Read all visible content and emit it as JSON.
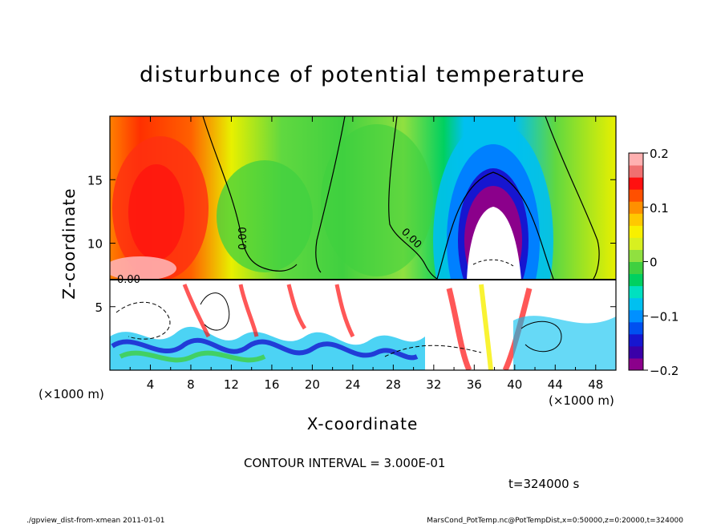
{
  "chart_data": {
    "type": "heatmap",
    "title": "disturbunce of potential temperature",
    "xlabel": "X-coordinate",
    "ylabel": "Z-coordinate",
    "x_unit_left": "(×1000 m)",
    "x_unit_right": "(×1000 m)",
    "xlim": [
      0,
      50
    ],
    "ylim": [
      0,
      20
    ],
    "x_ticks": [
      4,
      8,
      12,
      16,
      20,
      24,
      28,
      32,
      36,
      40,
      44,
      48
    ],
    "y_ticks": [
      5,
      10,
      15
    ],
    "colorbar": {
      "range": [
        -0.2,
        0.2
      ],
      "ticks": [
        0.2,
        0.1,
        0,
        -0.1,
        -0.2
      ],
      "tick_labels": [
        "0.2",
        "0.1",
        "0",
        "−0.1",
        "−0.2"
      ],
      "colors": [
        "#8b008b",
        "#3a00a8",
        "#1616d0",
        "#0050f0",
        "#0090ff",
        "#00c0f0",
        "#00e0c0",
        "#00d060",
        "#40d040",
        "#90e040",
        "#d8f020",
        "#f8f000",
        "#ffc800",
        "#ff9000",
        "#ff5000",
        "#ff1010",
        "#f07070",
        "#ffb0b0"
      ]
    },
    "contour_labels": [
      "0.00",
      "0.00",
      "0.00"
    ],
    "contour_interval": "CONTOUR INTERVAL = 3.000E-01",
    "time": "t=324000 s"
  },
  "footer": {
    "left": "./gpview_dist-from-xmean  2011-01-01",
    "right": "MarsCond_PotTemp.nc@PotTempDist,x=0:50000,z=0:20000,t=324000"
  }
}
